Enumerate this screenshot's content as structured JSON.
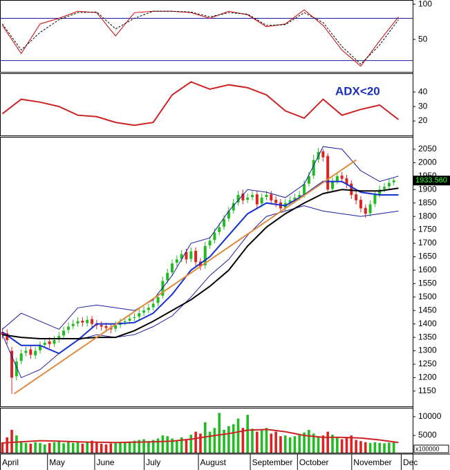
{
  "chart_data": [
    {
      "type": "line",
      "ylim": [
        4,
        104
      ],
      "yticks": [
        50,
        100
      ],
      "hlines": [
        80,
        20
      ],
      "hline_color": "#1a1aa0",
      "series": [
        {
          "color": "#cc0000",
          "line_style": "solid",
          "x": [
            0,
            8,
            16,
            24,
            32,
            40,
            48,
            56,
            64,
            72,
            80,
            88,
            96,
            104,
            112,
            120,
            128,
            136,
            144,
            152,
            160,
            168
          ],
          "values": [
            70,
            30,
            72,
            80,
            90,
            88,
            55,
            88,
            90,
            90,
            88,
            80,
            90,
            85,
            68,
            72,
            92,
            70,
            35,
            12,
            48,
            82
          ]
        },
        {
          "color": "#000000",
          "line_style": "dashed",
          "x": [
            0,
            8,
            16,
            24,
            32,
            40,
            48,
            56,
            64,
            72,
            80,
            88,
            96,
            104,
            112,
            120,
            128,
            136,
            144,
            152,
            160,
            168
          ],
          "values": [
            72,
            35,
            60,
            78,
            88,
            89,
            65,
            80,
            90,
            90,
            89,
            82,
            88,
            86,
            70,
            71,
            88,
            74,
            40,
            15,
            42,
            78
          ]
        }
      ]
    },
    {
      "type": "line",
      "ylim": [
        10,
        52
      ],
      "yticks": [
        20,
        30,
        40
      ],
      "annotation": "ADX<20",
      "series": [
        {
          "color": "#cc2222",
          "line_style": "bold",
          "x": [
            0,
            8,
            16,
            24,
            32,
            40,
            48,
            56,
            64,
            72,
            80,
            88,
            96,
            104,
            112,
            120,
            128,
            136,
            144,
            152,
            160,
            168
          ],
          "values": [
            25,
            35,
            33,
            30,
            24,
            23,
            19,
            17,
            19,
            38,
            47,
            42,
            45,
            43,
            38,
            27,
            22,
            35,
            24,
            28,
            31,
            21
          ]
        }
      ]
    },
    {
      "type": "candlestick",
      "ylim": [
        1093,
        2091
      ],
      "yticks": [
        1150,
        1200,
        1250,
        1300,
        1350,
        1400,
        1450,
        1500,
        1550,
        1600,
        1650,
        1700,
        1750,
        1800,
        1850,
        1900,
        1950,
        2000,
        2050
      ],
      "up_color": "#22bb22",
      "down_color": "#dd2222",
      "last_price": {
        "value": 1933.56,
        "label": "1933.560"
      },
      "x": [
        0,
        2,
        4,
        6,
        8,
        10,
        12,
        14,
        16,
        18,
        20,
        22,
        24,
        26,
        28,
        30,
        32,
        34,
        36,
        38,
        40,
        42,
        44,
        46,
        48,
        50,
        52,
        54,
        56,
        58,
        60,
        62,
        64,
        66,
        68,
        70,
        72,
        74,
        76,
        78,
        80,
        82,
        84,
        86,
        88,
        90,
        92,
        94,
        96,
        98,
        100,
        102,
        104,
        106,
        108,
        110,
        112,
        114,
        116,
        118,
        120,
        122,
        124,
        126,
        128,
        130,
        132,
        134,
        136,
        138,
        140,
        142,
        144,
        146,
        148,
        150,
        152,
        154,
        156,
        158,
        160,
        162,
        164,
        166
      ],
      "open": [
        1370,
        1365,
        1300,
        1205,
        1262,
        1292,
        1305,
        1283,
        1302,
        1322,
        1335,
        1326,
        1342,
        1357,
        1378,
        1392,
        1402,
        1412,
        1403,
        1418,
        1402,
        1396,
        1392,
        1387,
        1382,
        1397,
        1407,
        1412,
        1422,
        1427,
        1442,
        1452,
        1462,
        1478,
        1505,
        1562,
        1592,
        1628,
        1642,
        1668,
        1642,
        1672,
        1632,
        1618,
        1692,
        1712,
        1742,
        1762,
        1792,
        1822,
        1852,
        1885,
        1862,
        1872,
        1882,
        1848,
        1872,
        1882,
        1862,
        1852,
        1832,
        1852,
        1862,
        1872,
        1882,
        1922,
        1952,
        2012,
        2042,
        2025,
        1902,
        1932,
        1952,
        1942,
        1922,
        1882,
        1862,
        1832,
        1812,
        1847,
        1882,
        1902,
        1912,
        1927
      ],
      "high": [
        1385,
        1380,
        1315,
        1275,
        1305,
        1315,
        1320,
        1315,
        1335,
        1345,
        1350,
        1355,
        1370,
        1390,
        1405,
        1415,
        1425,
        1425,
        1430,
        1430,
        1415,
        1410,
        1405,
        1400,
        1410,
        1420,
        1425,
        1435,
        1440,
        1455,
        1465,
        1475,
        1490,
        1515,
        1575,
        1605,
        1640,
        1655,
        1675,
        1680,
        1685,
        1685,
        1645,
        1705,
        1725,
        1755,
        1775,
        1805,
        1835,
        1865,
        1895,
        1900,
        1885,
        1895,
        1895,
        1885,
        1895,
        1895,
        1875,
        1865,
        1865,
        1875,
        1885,
        1895,
        1935,
        1965,
        2030,
        2055,
        2050,
        2035,
        1945,
        1965,
        1965,
        1955,
        1935,
        1895,
        1875,
        1845,
        1860,
        1895,
        1915,
        1925,
        1940,
        1945
      ],
      "low": [
        1345,
        1325,
        1140,
        1190,
        1250,
        1280,
        1270,
        1270,
        1290,
        1310,
        1310,
        1315,
        1330,
        1345,
        1365,
        1380,
        1390,
        1390,
        1390,
        1385,
        1380,
        1375,
        1370,
        1365,
        1370,
        1385,
        1395,
        1400,
        1410,
        1415,
        1430,
        1440,
        1450,
        1465,
        1495,
        1550,
        1580,
        1615,
        1630,
        1625,
        1630,
        1615,
        1600,
        1605,
        1680,
        1700,
        1730,
        1750,
        1780,
        1810,
        1840,
        1845,
        1850,
        1860,
        1830,
        1835,
        1860,
        1845,
        1835,
        1815,
        1820,
        1840,
        1850,
        1860,
        1870,
        1910,
        1940,
        2000,
        2005,
        1885,
        1890,
        1920,
        1925,
        1905,
        1865,
        1845,
        1815,
        1795,
        1800,
        1835,
        1870,
        1890,
        1900,
        1915
      ],
      "close": [
        1360,
        1340,
        1200,
        1260,
        1290,
        1300,
        1285,
        1300,
        1320,
        1330,
        1325,
        1340,
        1355,
        1375,
        1390,
        1400,
        1410,
        1405,
        1415,
        1400,
        1395,
        1390,
        1385,
        1380,
        1395,
        1405,
        1410,
        1420,
        1425,
        1440,
        1450,
        1460,
        1475,
        1500,
        1560,
        1590,
        1625,
        1640,
        1660,
        1640,
        1670,
        1630,
        1615,
        1690,
        1710,
        1740,
        1760,
        1790,
        1820,
        1850,
        1880,
        1860,
        1870,
        1880,
        1845,
        1870,
        1880,
        1860,
        1850,
        1830,
        1850,
        1860,
        1870,
        1880,
        1920,
        1950,
        2010,
        2040,
        2020,
        1900,
        1930,
        1950,
        1940,
        1920,
        1880,
        1860,
        1830,
        1810,
        1845,
        1880,
        1900,
        1910,
        1925,
        1934
      ],
      "series": [
        {
          "color": "#1a1aa0",
          "line_style": "solid",
          "x": [
            0,
            8,
            16,
            24,
            32,
            40,
            48,
            56,
            64,
            72,
            80,
            88,
            96,
            104,
            112,
            120,
            128,
            136,
            144,
            152,
            160,
            168
          ],
          "values": [
            1380,
            1440,
            1410,
            1380,
            1460,
            1470,
            1460,
            1450,
            1490,
            1580,
            1700,
            1720,
            1820,
            1900,
            1890,
            1870,
            1920,
            2060,
            2050,
            1970,
            1930,
            1950
          ]
        },
        {
          "color": "#1a1aa0",
          "line_style": "solid",
          "x": [
            0,
            8,
            16,
            24,
            32,
            40,
            48,
            56,
            64,
            72,
            80,
            88,
            96,
            104,
            112,
            120,
            128,
            136,
            144,
            152,
            160,
            168
          ],
          "values": [
            1360,
            1200,
            1230,
            1290,
            1340,
            1360,
            1350,
            1360,
            1390,
            1430,
            1500,
            1580,
            1640,
            1730,
            1800,
            1820,
            1840,
            1820,
            1810,
            1800,
            1810,
            1820
          ]
        },
        {
          "color": "#1030d0",
          "line_style": "bold",
          "x": [
            0,
            8,
            16,
            24,
            32,
            40,
            48,
            56,
            64,
            72,
            80,
            88,
            96,
            104,
            112,
            120,
            128,
            136,
            144,
            152,
            160,
            168
          ],
          "values": [
            1370,
            1320,
            1320,
            1290,
            1340,
            1400,
            1400,
            1405,
            1440,
            1510,
            1600,
            1650,
            1730,
            1810,
            1850,
            1840,
            1880,
            1930,
            1930,
            1890,
            1880,
            1880
          ]
        },
        {
          "color": "#000000",
          "line_style": "bold",
          "x": [
            0,
            8,
            16,
            24,
            32,
            40,
            48,
            56,
            64,
            72,
            80,
            88,
            96,
            104,
            112,
            120,
            128,
            136,
            144,
            152,
            160,
            168
          ],
          "values": [
            1360,
            1350,
            1345,
            1345,
            1345,
            1350,
            1350,
            1375,
            1410,
            1450,
            1490,
            1540,
            1600,
            1690,
            1760,
            1810,
            1850,
            1885,
            1900,
            1895,
            1895,
            1905
          ]
        },
        {
          "color": "#e08a3c",
          "line_style": "bold",
          "x": [
            5,
            150
          ],
          "values": [
            1140,
            2010
          ]
        }
      ]
    },
    {
      "type": "bar",
      "ylim": [
        400,
        12000
      ],
      "yticks": [
        5000,
        10000
      ],
      "unit_label": "x100000",
      "xlim": [
        -1,
        174
      ],
      "xticks": [
        {
          "value": -1,
          "label": "April"
        },
        {
          "value": 19,
          "label": "May"
        },
        {
          "value": 39,
          "label": "June"
        },
        {
          "value": 60,
          "label": "July"
        },
        {
          "value": 83,
          "label": "August"
        },
        {
          "value": 105,
          "label": "September"
        },
        {
          "value": 125,
          "label": "October"
        },
        {
          "value": 148,
          "label": "November"
        },
        {
          "value": 169,
          "label": "Dec"
        }
      ],
      "x": [
        0,
        2,
        4,
        6,
        8,
        10,
        12,
        14,
        16,
        18,
        20,
        22,
        24,
        26,
        28,
        30,
        32,
        34,
        36,
        38,
        40,
        42,
        44,
        46,
        48,
        50,
        52,
        54,
        56,
        58,
        60,
        62,
        64,
        66,
        68,
        70,
        72,
        74,
        76,
        78,
        80,
        82,
        84,
        86,
        88,
        90,
        92,
        94,
        96,
        98,
        100,
        102,
        104,
        106,
        108,
        110,
        112,
        114,
        116,
        118,
        120,
        122,
        124,
        126,
        128,
        130,
        132,
        134,
        136,
        138,
        140,
        142,
        144,
        146,
        148,
        150,
        152,
        154,
        156,
        158,
        160,
        162,
        164,
        166
      ],
      "values": [
        3200,
        4500,
        6500,
        5000,
        3500,
        3000,
        2800,
        3200,
        3000,
        2600,
        3000,
        3200,
        3500,
        2900,
        3300,
        3000,
        3400,
        2800,
        3100,
        3600,
        3200,
        2800,
        2600,
        2900,
        3000,
        3300,
        3200,
        3400,
        3600,
        3800,
        4000,
        3500,
        3800,
        4200,
        5000,
        4800,
        4200,
        3600,
        4500,
        4000,
        5200,
        6000,
        5500,
        8500,
        6000,
        7000,
        11000,
        6500,
        7500,
        8000,
        9500,
        7000,
        10500,
        6800,
        6000,
        6500,
        7000,
        5500,
        6000,
        4800,
        5000,
        4500,
        4800,
        5200,
        5800,
        6500,
        5500,
        4800,
        5000,
        6000,
        5200,
        4500,
        4000,
        4300,
        5000,
        3800,
        3500,
        3200,
        3000,
        3200,
        3000,
        2900,
        3100,
        3300
      ],
      "series": [
        {
          "color": "#cc2222",
          "line_style": "bold",
          "x": [
            0,
            8,
            16,
            24,
            32,
            40,
            48,
            56,
            64,
            72,
            80,
            88,
            96,
            104,
            112,
            120,
            128,
            136,
            144,
            152,
            160,
            168
          ],
          "values": [
            3000,
            3300,
            3600,
            3500,
            3300,
            3200,
            3100,
            3200,
            3300,
            3500,
            4000,
            4800,
            5500,
            6400,
            6600,
            6000,
            5000,
            4500,
            4500,
            4300,
            3800,
            3100
          ]
        }
      ]
    }
  ]
}
